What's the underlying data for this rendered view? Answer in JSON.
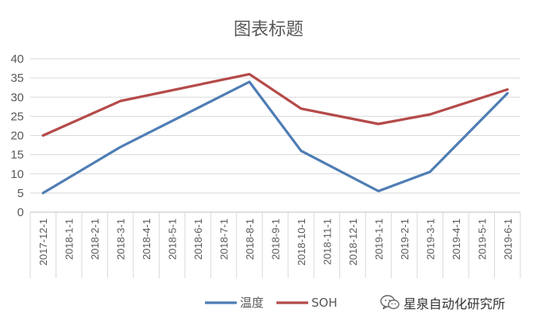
{
  "chart_data": {
    "type": "line",
    "title": "图表标题",
    "categories": [
      "2017-12-1",
      "2018-1-1",
      "2018-2-1",
      "2018-3-1",
      "2018-4-1",
      "2018-5-1",
      "2018-6-1",
      "2018-7-1",
      "2018-8-1",
      "2018-9-1",
      "2018-10-1",
      "2018-11-1",
      "2018-12-1",
      "2019-1-1",
      "2019-2-1",
      "2019-3-1",
      "2019-4-1",
      "2019-5-1",
      "2019-6-1"
    ],
    "series": [
      {
        "name": "温度",
        "color": "#4f7db4",
        "points": [
          {
            "x": "2017-12-1",
            "y": 5
          },
          {
            "x": "2018-3-1",
            "y": 17
          },
          {
            "x": "2018-8-1",
            "y": 34
          },
          {
            "x": "2018-10-1",
            "y": 16
          },
          {
            "x": "2019-1-1",
            "y": 5.5
          },
          {
            "x": "2019-3-1",
            "y": 10.5
          },
          {
            "x": "2019-6-1",
            "y": 31
          }
        ]
      },
      {
        "name": "SOH",
        "color": "#b54a4a",
        "points": [
          {
            "x": "2017-12-1",
            "y": 20
          },
          {
            "x": "2018-3-1",
            "y": 29
          },
          {
            "x": "2018-8-1",
            "y": 36
          },
          {
            "x": "2018-10-1",
            "y": 27
          },
          {
            "x": "2019-1-1",
            "y": 23
          },
          {
            "x": "2019-3-1",
            "y": 25.5
          },
          {
            "x": "2019-6-1",
            "y": 32
          }
        ]
      }
    ],
    "ylim": [
      0,
      40
    ],
    "yticks": [
      0,
      5,
      10,
      15,
      20,
      25,
      30,
      35,
      40
    ],
    "grid": true,
    "legend_position": "bottom-center"
  },
  "watermark": {
    "text": "星泉自动化研究所",
    "icon": "wechat-icon"
  }
}
